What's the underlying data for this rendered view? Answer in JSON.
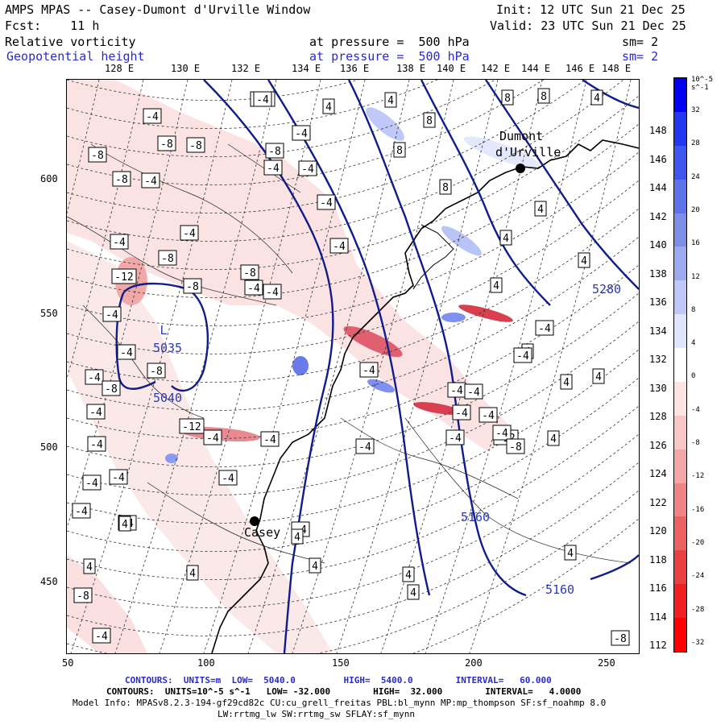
{
  "header": {
    "title": "AMPS MPAS -- Casey-Dumont d'Urville Window",
    "init": "Init: 12 UTC Sun 21 Dec 25",
    "fcst": "Fcst:    11 h",
    "valid": "Valid: 23 UTC Sun 21 Dec 25",
    "field1": "Relative vorticity",
    "field1_level": "at pressure =  500 hPa",
    "field1_sm": "sm= 2",
    "field2": "Geopotential height",
    "field2_level": "at pressure =  500 hPa",
    "field2_sm": "sm= 2"
  },
  "map": {
    "top_lon_labels": [
      "128 E",
      "130 E",
      "132 E",
      "134 E",
      "136 E",
      "138 E",
      "140 E",
      "142 E",
      "144 E",
      "146 E",
      "148 E"
    ],
    "right_lat_labels": [
      "148 E",
      "146 E",
      "144 E",
      "142 E",
      "140 E",
      "138 E",
      "136 E",
      "134 E",
      "132 E",
      "130 E",
      "128 E",
      "126 E",
      "124 E",
      "122 E",
      "120 E",
      "118 E",
      "116 E",
      "114 E",
      "112 E"
    ],
    "x_ticks": [
      "50",
      "100",
      "150",
      "200",
      "250"
    ],
    "y_ticks": [
      "600",
      "550",
      "500",
      "450"
    ],
    "places": [
      {
        "name": "Dumont",
        "name2": "d'Urville"
      },
      {
        "name": "Casey"
      }
    ],
    "height_labels": [
      "L",
      "5035",
      "5040",
      "5280",
      "5160",
      "5160"
    ],
    "vort_labels": [
      "-12",
      "-8",
      "-8",
      "-8",
      "-8",
      "-8",
      "-4",
      "-4",
      "-4",
      "-4",
      "-4",
      "-12",
      "-4",
      "-8",
      "-4",
      "-8",
      "-8",
      "-4",
      "-4",
      "-8",
      "-4",
      "-8",
      "-12",
      "-4",
      "-4",
      "-4",
      "-4",
      "-4",
      "-4",
      "-4",
      "-4",
      "-4",
      "-4",
      "-4",
      "-4",
      "-12",
      "-8",
      "-4",
      "-4",
      "-4",
      "-4",
      "-4",
      "-4",
      "-8",
      "4",
      "4",
      "8",
      "8",
      "8",
      "8",
      "8",
      "4",
      "4",
      "4",
      "4",
      "4",
      "4",
      "4",
      "4",
      "4",
      "4",
      "4",
      "4",
      "4",
      "4",
      "4",
      "4",
      "4",
      "-4",
      "-4",
      "-4",
      "-4",
      "-4",
      "-4",
      "-8",
      "-8",
      "-4",
      "-4"
    ],
    "colors": {
      "height_contour": "#101c8c",
      "coast": "#000000",
      "neg": "#e8404a",
      "pos": "#4a5ae8"
    }
  },
  "colorbar": {
    "units": "10^-5 s^-1",
    "labels": [
      "32",
      "28",
      "24",
      "20",
      "16",
      "12",
      "8",
      "4",
      "0",
      "-4",
      "-8",
      "-12",
      "-16",
      "-20",
      "-24",
      "-28",
      "-32"
    ],
    "colors": [
      "#0000f0",
      "#2238f0",
      "#3f56ee",
      "#5e72ea",
      "#7d8ee8",
      "#9eaaf0",
      "#c0c8f8",
      "#e0e4fc",
      "#ffffff",
      "#fde4e4",
      "#f9c6c6",
      "#f4a6a6",
      "#f08484",
      "#ec6262",
      "#ea4040",
      "#f02020",
      "#ff0000"
    ]
  },
  "footer": {
    "line1": "CONTOURS:  UNITS=m  LOW=  5040.0         HIGH=  5400.0        INTERVAL=   60.000",
    "line2": "CONTOURS:  UNITS=10^-5 s^-1   LOW= -32.000        HIGH=  32.000        INTERVAL=   4.0000",
    "line3": "Model Info: MPASv8.2.3-194-gf29cd82c CU:cu_grell_freitas PBL:bl_mynn MP:mp_thompson SF:sf_noahmp 8.0",
    "line4": "LW:rrtmg_lw SW:rrtmg_sw SFLAY:sf_mynn"
  }
}
